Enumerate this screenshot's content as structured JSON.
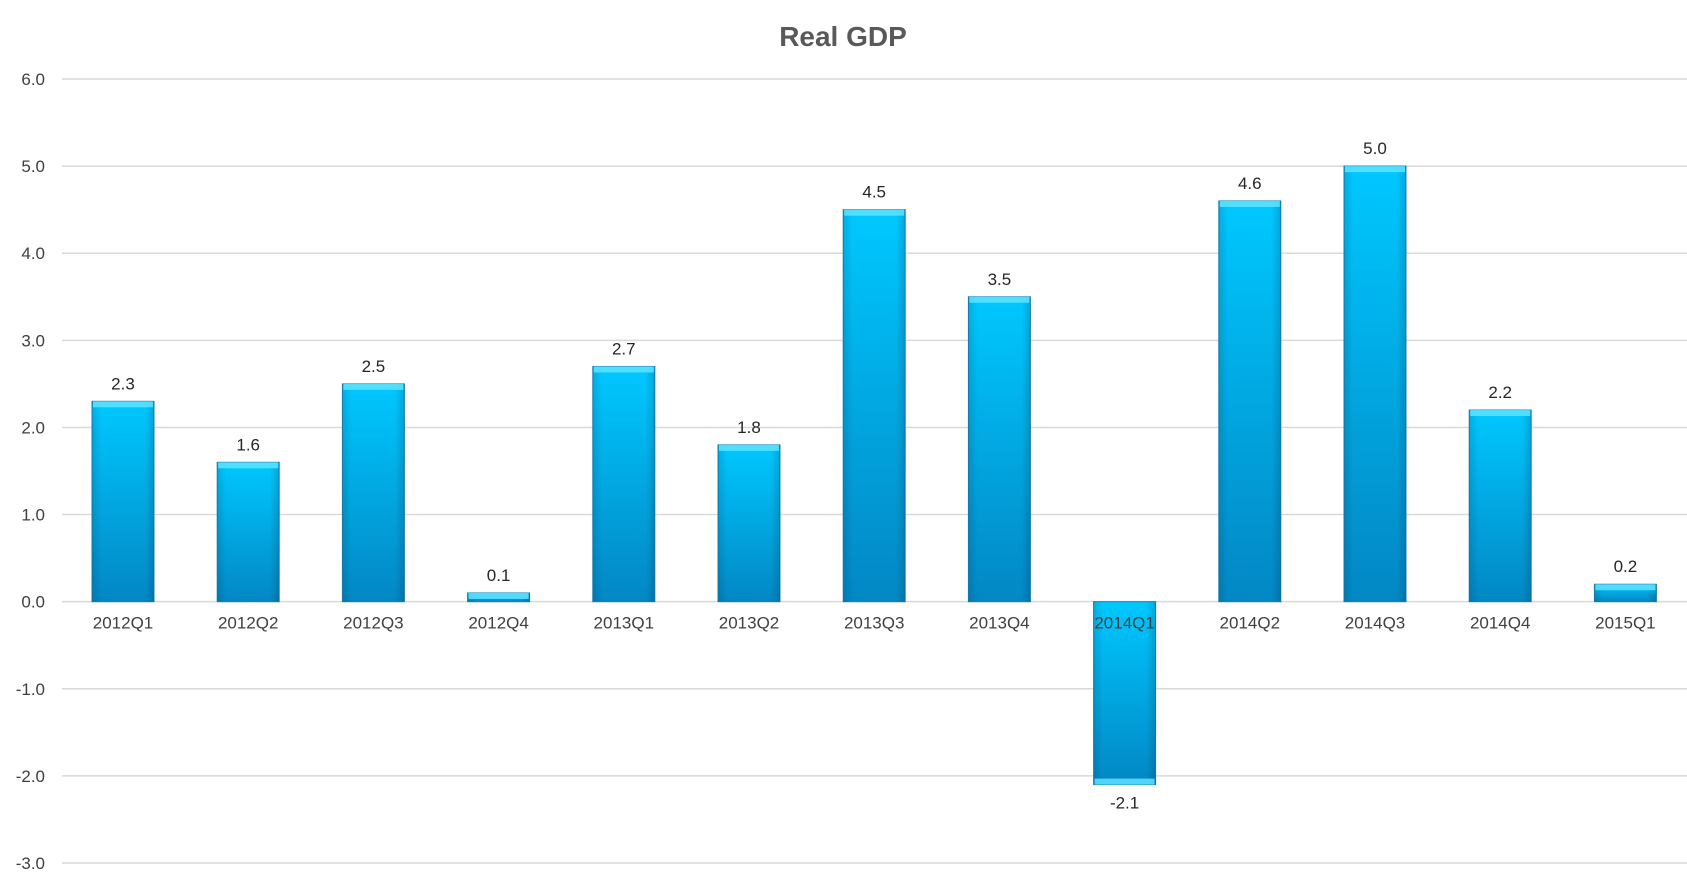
{
  "chart_data": {
    "type": "bar",
    "title": "Real GDP",
    "xlabel": "",
    "ylabel": "",
    "categories": [
      "2012Q1",
      "2012Q2",
      "2012Q3",
      "2012Q4",
      "2013Q1",
      "2013Q2",
      "2013Q3",
      "2013Q4",
      "2014Q1",
      "2014Q2",
      "2014Q3",
      "2014Q4",
      "2015Q1"
    ],
    "values": [
      2.3,
      1.6,
      2.5,
      0.1,
      2.7,
      1.8,
      4.5,
      3.5,
      -2.1,
      4.6,
      5.0,
      2.2,
      0.2
    ],
    "value_labels": [
      "2.3",
      "1.6",
      "2.5",
      "0.1",
      "2.7",
      "1.8",
      "4.5",
      "3.5",
      "-2.1",
      "4.6",
      "5.0",
      "2.2",
      "0.2"
    ],
    "ylim": [
      -3.0,
      6.0
    ],
    "y_ticks": [
      6.0,
      5.0,
      4.0,
      3.0,
      2.0,
      1.0,
      0.0,
      -1.0,
      -2.0,
      -3.0
    ],
    "y_tick_labels": [
      "6.0",
      "5.0",
      "4.0",
      "3.0",
      "2.0",
      "1.0",
      "0.0",
      "-1.0",
      "-2.0",
      "-3.0"
    ],
    "grid": true,
    "legend": "none",
    "colors": {
      "bar_top": "#00c8ff",
      "bar_bottom": "#0287c4",
      "bar_cap": "#5fe3ff",
      "gridline": "#d9d9d9",
      "title": "#595959"
    }
  }
}
